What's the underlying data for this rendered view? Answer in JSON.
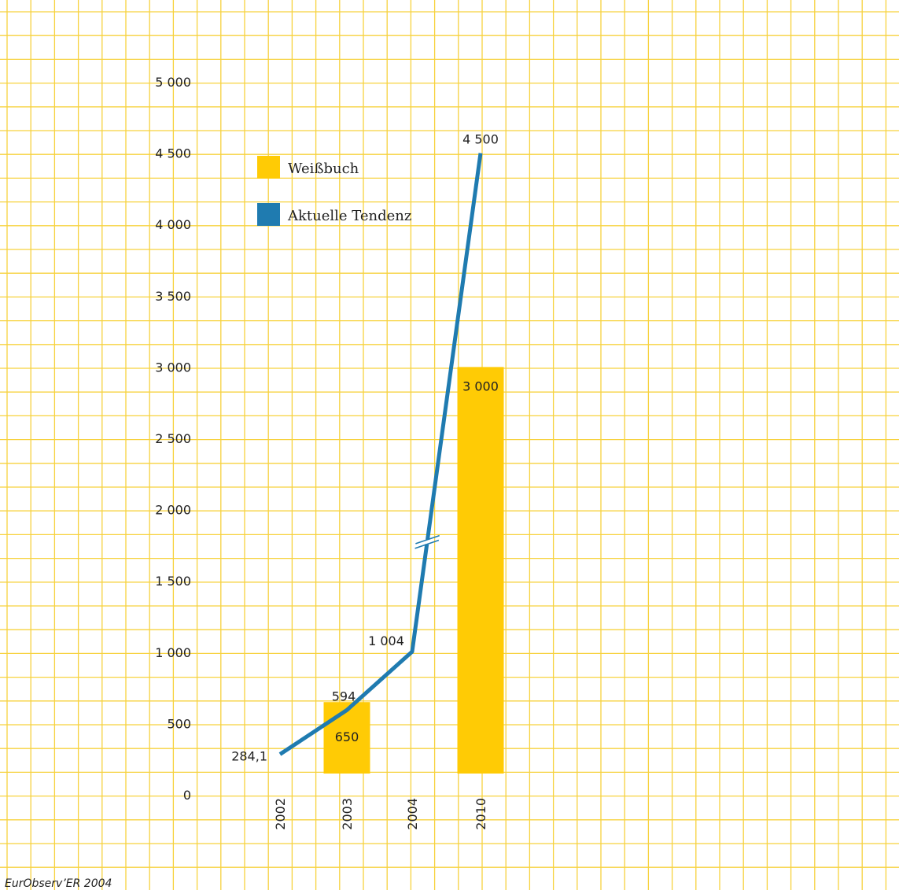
{
  "chart_data": {
    "type": "bar",
    "categories": [
      "2002",
      "2003",
      "2004",
      "2010"
    ],
    "series": [
      {
        "name": "Weißbuch",
        "kind": "bar",
        "values": [
          null,
          650,
          null,
          3000
        ],
        "labels": [
          "",
          "650",
          "",
          "3 000"
        ]
      },
      {
        "name": "Aktuelle Tendenz",
        "kind": "line",
        "values": [
          284.1,
          594,
          1004,
          4500
        ],
        "labels": [
          "284,1",
          "594",
          "1 004",
          "4 500"
        ]
      }
    ],
    "y_ticks": [
      {
        "value": 0,
        "label": "0"
      },
      {
        "value": 500,
        "label": "500"
      },
      {
        "value": 1000,
        "label": "1 000"
      },
      {
        "value": 1500,
        "label": "1 500"
      },
      {
        "value": 2000,
        "label": "2 000"
      },
      {
        "value": 2500,
        "label": "2 500"
      },
      {
        "value": 3000,
        "label": "3 000"
      },
      {
        "value": 3500,
        "label": "3 500"
      },
      {
        "value": 4000,
        "label": "4 000"
      },
      {
        "value": 4500,
        "label": "4 500"
      },
      {
        "value": 5000,
        "label": "5 000"
      }
    ],
    "ylim": [
      0,
      5000
    ],
    "axis_break": "between 2004 and 2010",
    "grid": true,
    "legend_position": "top-left",
    "colors": {
      "bar": "#FFCB05",
      "line": "#1F7BB0",
      "grid": "#F7D23E"
    },
    "source": "EurObserv’ER 2004"
  }
}
